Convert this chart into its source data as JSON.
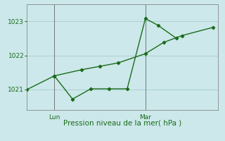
{
  "xlabel": "Pression niveau de la mer( hPa )",
  "bg_color": "#cce8ea",
  "grid_color": "#aad0d2",
  "line_color": "#1a6b1a",
  "ylim": [
    1020.4,
    1023.5
  ],
  "xlim": [
    0,
    10.5
  ],
  "yticks": [
    1021,
    1022,
    1023
  ],
  "day_ticks": [
    [
      1.5,
      "Lun"
    ],
    [
      6.5,
      "Mar"
    ]
  ],
  "series1_x": [
    0.0,
    1.5,
    3.0,
    4.0,
    5.0,
    6.5,
    7.5,
    8.5,
    10.2
  ],
  "series1_y": [
    1021.0,
    1021.4,
    1021.58,
    1021.68,
    1021.78,
    1022.05,
    1022.38,
    1022.58,
    1022.82
  ],
  "series2_x": [
    1.5,
    2.5,
    3.5,
    4.5,
    5.5,
    6.5,
    7.2,
    8.2
  ],
  "series2_y": [
    1021.4,
    1020.72,
    1021.02,
    1021.02,
    1021.02,
    1023.08,
    1022.88,
    1022.5
  ],
  "vline_color": "#777777",
  "tick_label_fontsize": 6.5,
  "xlabel_fontsize": 7.5
}
